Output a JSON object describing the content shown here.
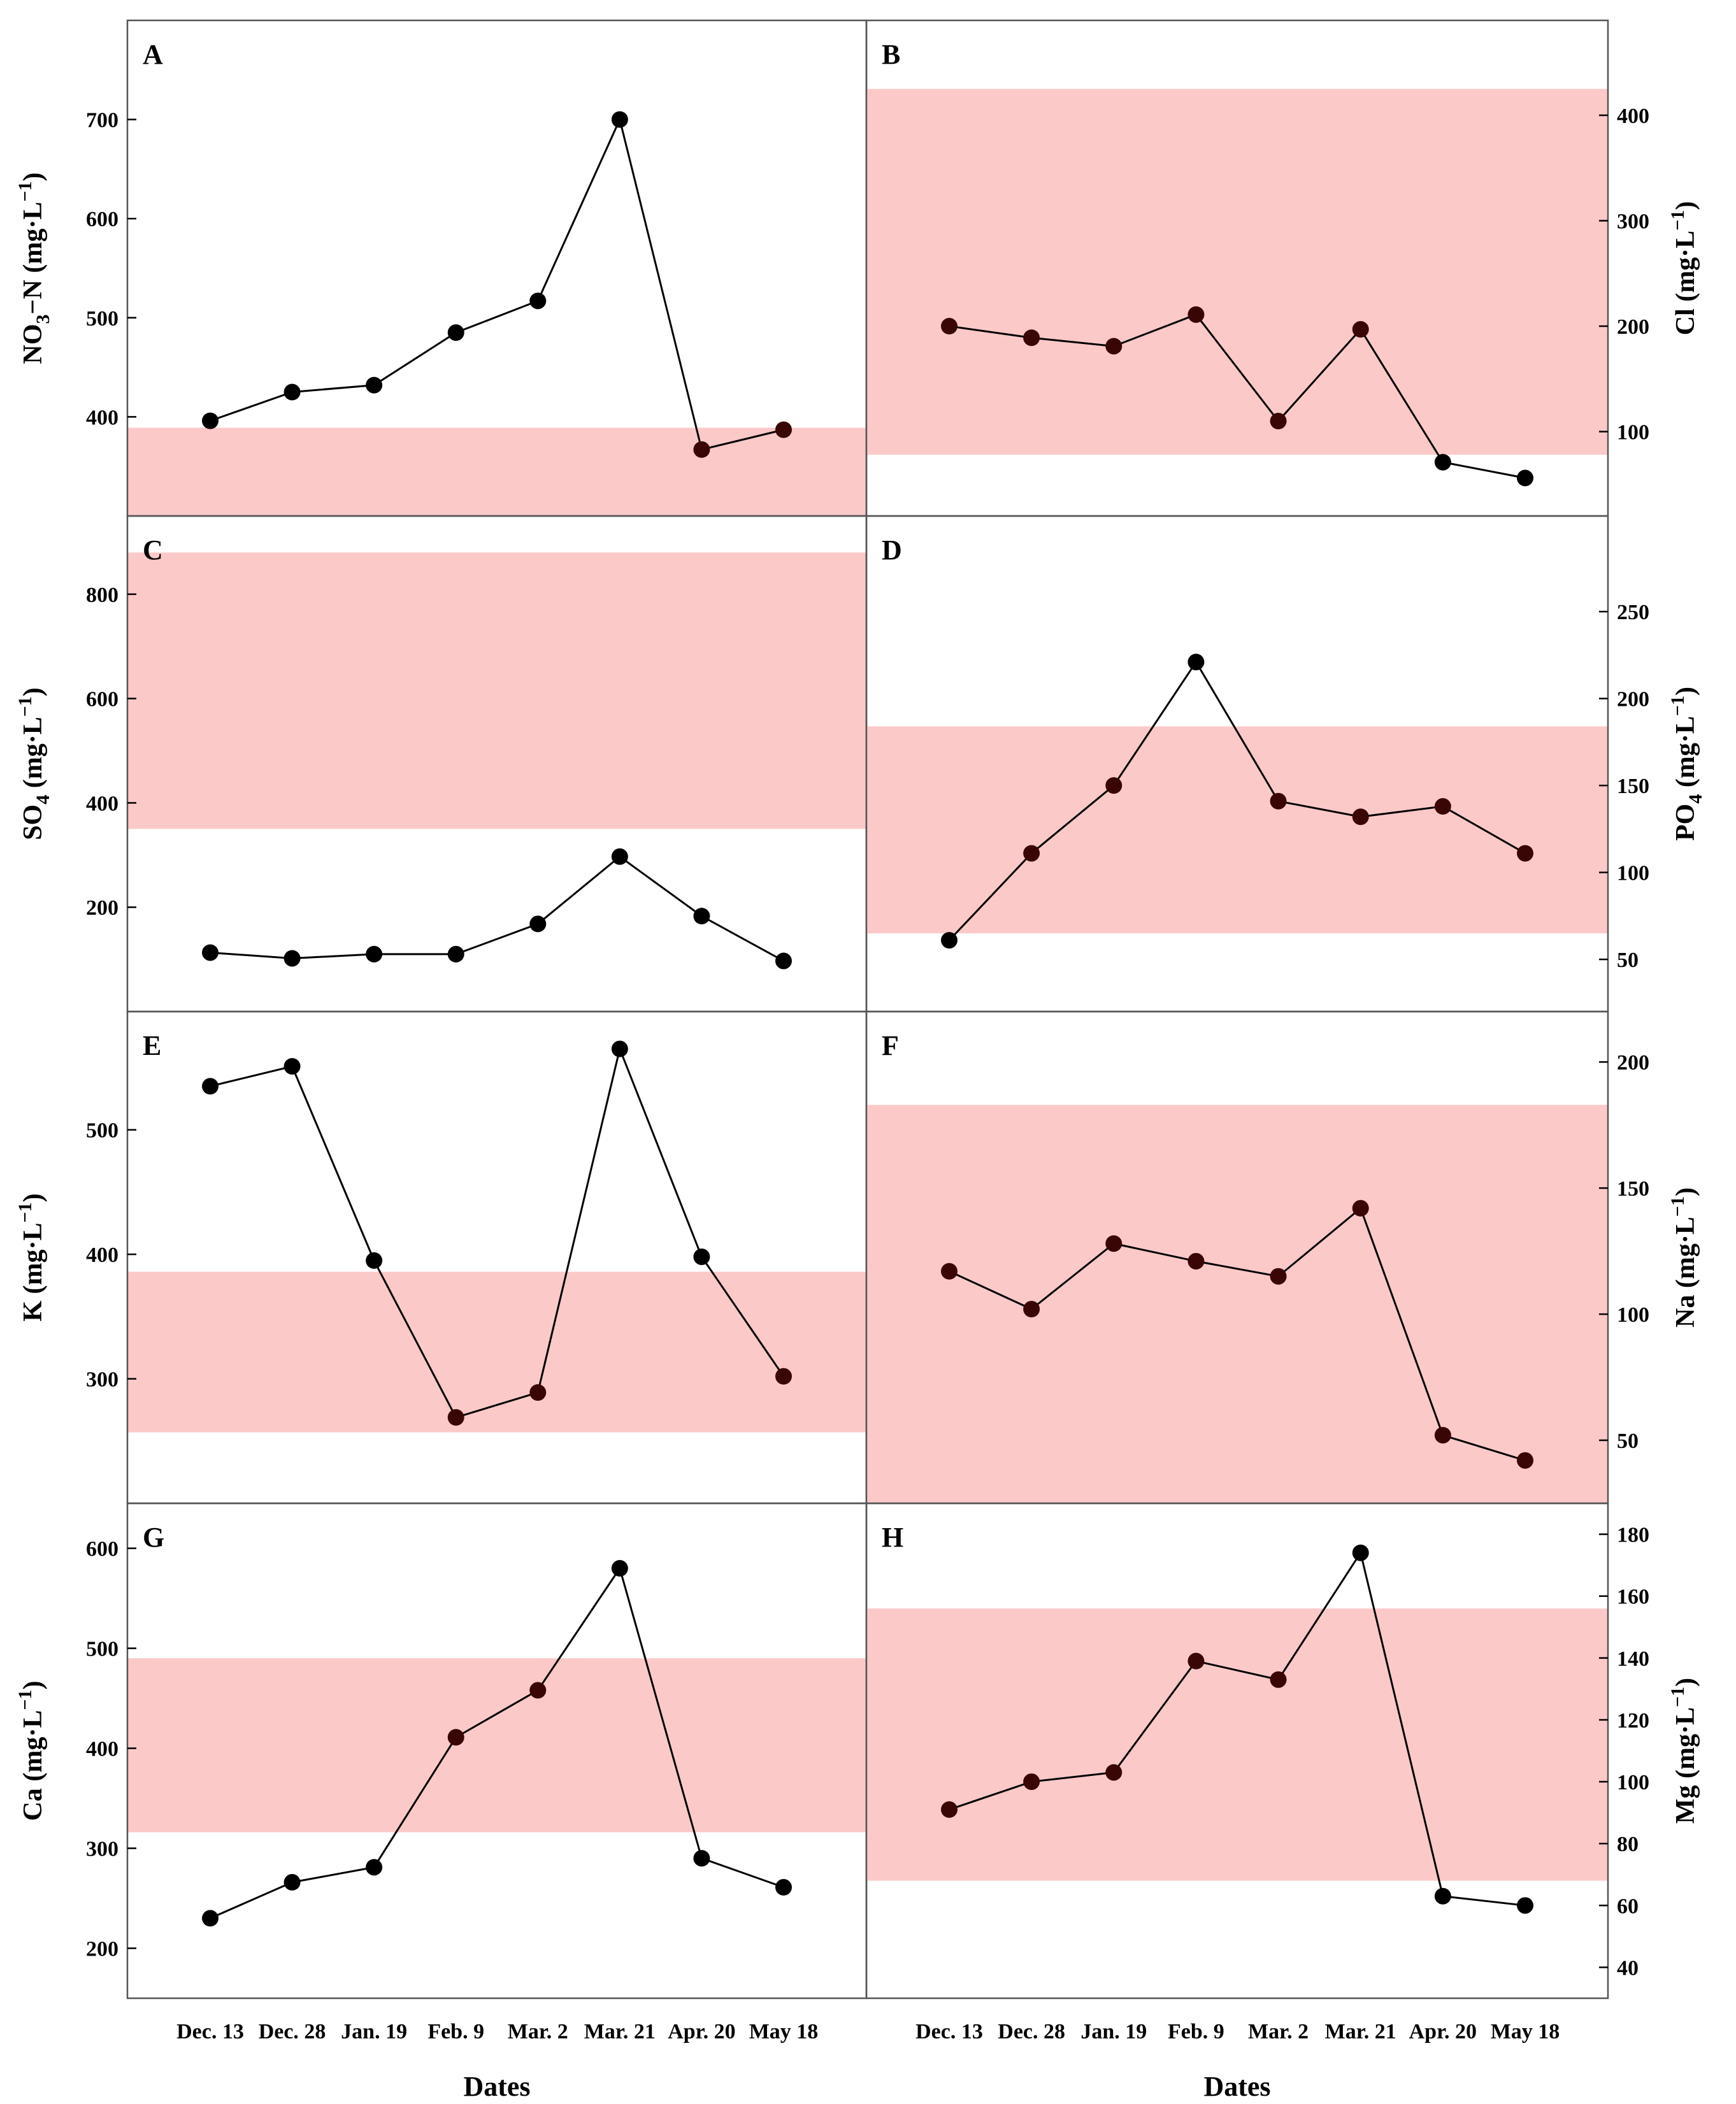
{
  "figure": {
    "x_axis_title": "Dates",
    "dates": [
      "Dec. 13",
      "Dec. 28",
      "Jan. 19",
      "Feb. 9",
      "Mar. 2",
      "Mar. 21",
      "Apr. 20",
      "May 18"
    ]
  },
  "colors": {
    "band": "#fcc9c9",
    "line": "#000000",
    "marker": "#000000",
    "marker_in_band": "#3a0505",
    "frame": "#555555"
  },
  "chart_data": [
    {
      "panel": "A",
      "type": "line",
      "ylabel": "NO3−N (mg·L−1)",
      "ylabel_main": "NO",
      "ylabel_sub": "3",
      "ylabel_mid": "−N (mg·L",
      "ylabel_sup": "−1",
      "ylabel_end": ")",
      "ylim": [
        300,
        800
      ],
      "yticks": [
        400,
        500,
        600,
        700
      ],
      "band": [
        300,
        389
      ],
      "values": [
        396,
        425,
        432,
        485,
        517,
        700,
        367,
        387
      ]
    },
    {
      "panel": "B",
      "type": "line",
      "ylabel": "Cl (mg·L−1)",
      "ylabel_main": "Cl (mg·L",
      "ylabel_sub": "",
      "ylabel_mid": "",
      "ylabel_sup": "−1",
      "ylabel_end": ")",
      "ylim": [
        20,
        490
      ],
      "yticks": [
        100,
        200,
        300,
        400
      ],
      "band": [
        78,
        425
      ],
      "values": [
        200,
        189,
        181,
        211,
        110,
        197,
        71,
        56
      ]
    },
    {
      "panel": "C",
      "type": "line",
      "ylabel": "SO4 (mg·L−1)",
      "ylabel_main": "SO",
      "ylabel_sub": "4",
      "ylabel_mid": " (mg·L",
      "ylabel_sup": "−1",
      "ylabel_end": ")",
      "ylim": [
        0,
        950
      ],
      "yticks": [
        200,
        400,
        600,
        800
      ],
      "band": [
        350,
        880
      ],
      "values": [
        113,
        102,
        110,
        110,
        168,
        297,
        183,
        97
      ]
    },
    {
      "panel": "D",
      "type": "line",
      "ylabel": "PO4 (mg·L−1)",
      "ylabel_main": "PO",
      "ylabel_sub": "4",
      "ylabel_mid": " (mg·L",
      "ylabel_sup": "−1",
      "ylabel_end": ")",
      "ylim": [
        20,
        305
      ],
      "yticks": [
        50,
        100,
        150,
        200,
        250
      ],
      "band": [
        65,
        184
      ],
      "values": [
        61,
        111,
        150,
        221,
        141,
        132,
        138,
        111
      ]
    },
    {
      "panel": "E",
      "type": "line",
      "ylabel": "K (mg·L−1)",
      "ylabel_main": "K (mg·L",
      "ylabel_sub": "",
      "ylabel_mid": "",
      "ylabel_sup": "−1",
      "ylabel_end": ")",
      "ylim": [
        200,
        595
      ],
      "yticks": [
        300,
        400,
        500
      ],
      "band": [
        257,
        386
      ],
      "values": [
        535,
        551,
        395,
        269,
        289,
        565,
        398,
        302
      ]
    },
    {
      "panel": "F",
      "type": "line",
      "ylabel": "Na (mg·L−1)",
      "ylabel_main": "Na (mg·L",
      "ylabel_sub": "",
      "ylabel_mid": "",
      "ylabel_sup": "−1",
      "ylabel_end": ")",
      "ylim": [
        25,
        220
      ],
      "yticks": [
        50,
        100,
        150,
        200
      ],
      "band": [
        25,
        183
      ],
      "values": [
        117,
        102,
        128,
        121,
        115,
        142,
        52,
        42
      ]
    },
    {
      "panel": "G",
      "type": "line",
      "ylabel": "Ca (mg·L−1)",
      "ylabel_main": "Ca (mg·L",
      "ylabel_sub": "",
      "ylabel_mid": "",
      "ylabel_sup": "−1",
      "ylabel_end": ")",
      "ylim": [
        150,
        645
      ],
      "yticks": [
        200,
        300,
        400,
        500,
        600
      ],
      "band": [
        316,
        490
      ],
      "values": [
        230,
        266,
        281,
        411,
        458,
        580,
        290,
        261
      ]
    },
    {
      "panel": "H",
      "type": "line",
      "ylabel": "Mg (mg·L−1)",
      "ylabel_main": "Mg (mg·L",
      "ylabel_sub": "",
      "ylabel_mid": "",
      "ylabel_sup": "−1",
      "ylabel_end": ")",
      "ylim": [
        30,
        190
      ],
      "yticks": [
        40,
        60,
        80,
        100,
        120,
        140,
        160,
        180
      ],
      "band": [
        68,
        156
      ],
      "values": [
        91,
        100,
        103,
        139,
        133,
        174,
        63,
        60
      ]
    }
  ]
}
